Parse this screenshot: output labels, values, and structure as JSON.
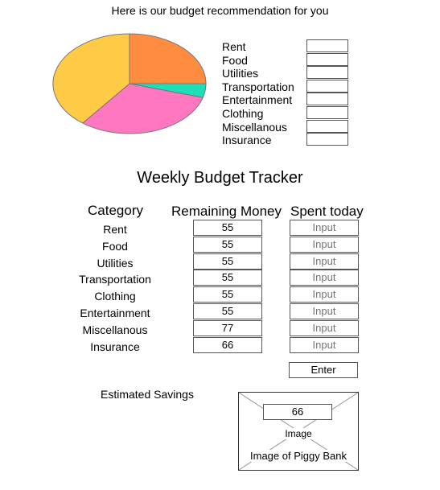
{
  "header": {
    "recommendation_text": "Here is our budget recommendation for you"
  },
  "chart_data": {
    "type": "pie",
    "categories": [
      "Rent",
      "Food",
      "Utilities",
      "Transportation",
      "Entertainment",
      "Clothing",
      "Miscellanous",
      "Insurance"
    ],
    "slices": [
      {
        "label": "Rent",
        "value": 25,
        "color": "#FF8C3F"
      },
      {
        "label": "Utilities",
        "value": 4.5,
        "color": "#1DDFB8"
      },
      {
        "label": "Food",
        "value": 31,
        "color": "#FF77BF"
      },
      {
        "label": "Transportation",
        "value": 39.5,
        "color": "#FFCB47"
      }
    ]
  },
  "legend": {
    "items": [
      "Rent",
      "Food",
      "Utilities",
      "Transportation",
      "Entertainment",
      "Clothing",
      "Miscellanous",
      "Insurance"
    ]
  },
  "tracker": {
    "title": "Weekly Budget Tracker",
    "col_category": "Category",
    "col_remaining": "Remaining Money",
    "col_spent": "Spent today",
    "rows": [
      {
        "category": "Rent",
        "remaining": "55",
        "spent_placeholder": "Input"
      },
      {
        "category": "Food",
        "remaining": "55",
        "spent_placeholder": "Input"
      },
      {
        "category": "Utilities",
        "remaining": "55",
        "spent_placeholder": "Input"
      },
      {
        "category": "Transportation",
        "remaining": "55",
        "spent_placeholder": "Input"
      },
      {
        "category": "Clothing",
        "remaining": "55",
        "spent_placeholder": "Input"
      },
      {
        "category": "Entertainment",
        "remaining": "55",
        "spent_placeholder": "Input"
      },
      {
        "category": "Miscellanous",
        "remaining": "77",
        "spent_placeholder": "Input"
      },
      {
        "category": "Insurance",
        "remaining": "66",
        "spent_placeholder": "Input"
      }
    ],
    "enter_label": "Enter"
  },
  "savings": {
    "label": "Estimated Savings",
    "value": "66",
    "image_label": "Image",
    "image_caption": "Image of Piggy Bank"
  }
}
